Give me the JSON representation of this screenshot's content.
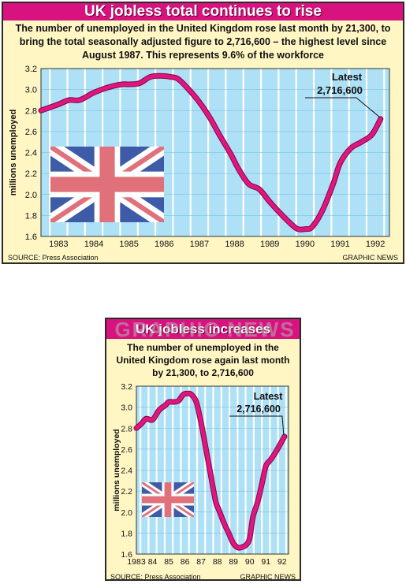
{
  "large": {
    "title": "UK jobless total continues to rise",
    "subtitle": "The number of unemployed in the United Kingdom rose last month by 21,300, to bring the total seasonally adjusted figure to 2,716,600 – the highest level since August 1987. This represents 9.6% of the workforce",
    "source": "SOURCE: Press Association",
    "brand": "GRAPHIC NEWS"
  },
  "small": {
    "title": "UK jobless increases",
    "subtitle": "The number of unemployed in the United Kingdom rose again last month by 21,300, to 2,716,600",
    "source": "SOURCE: Press Association",
    "brand": "GRAPHIC NEWS"
  },
  "watermark": "GRAPHIC NEWS",
  "colors": {
    "banner": "#d8137f",
    "line": "#e0157f",
    "stripe": "#aee0f6",
    "panel": "#fff6c4",
    "flag_blue": "#3e5ba8",
    "flag_red": "#e0707a"
  },
  "chart_data": [
    {
      "type": "line",
      "x_tick_labels": [
        "1983",
        "1984",
        "1985",
        "1986",
        "1987",
        "1988",
        "1989",
        "1990",
        "1991",
        "1992"
      ],
      "ylabel": "millions unemployed",
      "ylim": [
        1.6,
        3.2
      ],
      "xlim": [
        1982.5,
        1992.4
      ],
      "y_ticks": [
        "3.2",
        "3.0",
        "2.8",
        "2.6",
        "2.4",
        "2.2",
        "2.0",
        "1.8",
        "1.6"
      ],
      "series": [
        {
          "x": [
            1982.5,
            1983.0,
            1983.3,
            1983.6,
            1984.0,
            1984.4,
            1984.8,
            1985.0,
            1985.3,
            1985.6,
            1985.9,
            1986.2,
            1986.4,
            1986.7,
            1987.0,
            1987.3,
            1987.6,
            1987.9,
            1988.1,
            1988.4,
            1988.7,
            1989.0,
            1989.3,
            1989.6,
            1989.8,
            1990.0,
            1990.2,
            1990.5,
            1990.8,
            1991.0,
            1991.3,
            1991.6,
            1991.9,
            1992.15
          ],
          "y": [
            2.8,
            2.86,
            2.9,
            2.9,
            2.97,
            3.02,
            3.05,
            3.05,
            3.06,
            3.12,
            3.13,
            3.12,
            3.1,
            3.0,
            2.88,
            2.73,
            2.55,
            2.38,
            2.25,
            2.1,
            2.05,
            1.93,
            1.82,
            1.72,
            1.67,
            1.67,
            1.69,
            1.85,
            2.1,
            2.3,
            2.44,
            2.5,
            2.57,
            2.72
          ]
        }
      ],
      "annotation": {
        "label": "Latest",
        "value": "2,716,600"
      }
    },
    {
      "type": "line",
      "x_tick_labels": [
        "1983",
        "84",
        "85",
        "86",
        "87",
        "88",
        "89",
        "90",
        "91",
        "92"
      ],
      "ylabel": "millions unemployed",
      "ylim": [
        1.6,
        3.2
      ],
      "xlim": [
        1983.0,
        1992.4
      ],
      "y_ticks": [
        "3.2",
        "3.0",
        "2.8",
        "2.6",
        "2.4",
        "2.2",
        "2.0",
        "1.8",
        "1.6"
      ],
      "series": [
        {
          "x": [
            1983.0,
            1983.3,
            1983.6,
            1984.0,
            1984.4,
            1984.8,
            1985.0,
            1985.3,
            1985.6,
            1985.9,
            1986.2,
            1986.4,
            1986.7,
            1987.0,
            1987.3,
            1987.6,
            1987.9,
            1988.1,
            1988.4,
            1988.7,
            1989.0,
            1989.3,
            1989.6,
            1989.8,
            1990.0,
            1990.2,
            1990.5,
            1990.8,
            1991.0,
            1991.3,
            1991.6,
            1991.9,
            1992.15
          ],
          "y": [
            2.8,
            2.84,
            2.89,
            2.88,
            2.97,
            3.02,
            3.05,
            3.05,
            3.06,
            3.12,
            3.13,
            3.12,
            3.05,
            2.85,
            2.6,
            2.35,
            2.1,
            2.02,
            1.9,
            1.8,
            1.7,
            1.66,
            1.67,
            1.69,
            1.75,
            1.95,
            2.1,
            2.3,
            2.44,
            2.5,
            2.57,
            2.65,
            2.72
          ]
        }
      ],
      "annotation": {
        "label": "Latest",
        "value": "2,716,600"
      }
    }
  ]
}
